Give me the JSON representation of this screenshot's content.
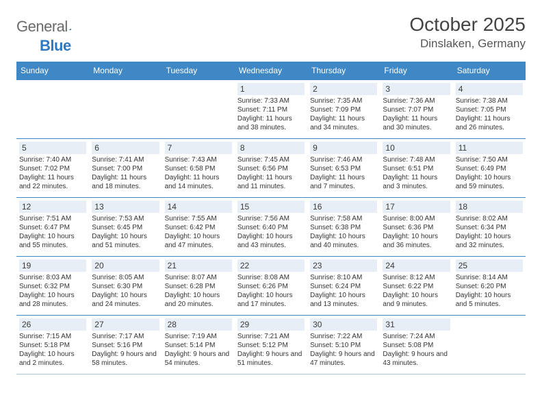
{
  "brand": {
    "part1": "General",
    "part2": "Blue"
  },
  "header": {
    "month_title": "October 2025",
    "location": "Dinslaken, Germany"
  },
  "colors": {
    "accent": "#3f88c5",
    "daynum_bg": "#e7eef5",
    "text": "#333333",
    "logo_gray": "#6a6a6a",
    "logo_blue": "#2f79c2"
  },
  "weekdays": [
    "Sunday",
    "Monday",
    "Tuesday",
    "Wednesday",
    "Thursday",
    "Friday",
    "Saturday"
  ],
  "weeks": [
    [
      {
        "day": "",
        "sunrise": "",
        "sunset": "",
        "daylight": ""
      },
      {
        "day": "",
        "sunrise": "",
        "sunset": "",
        "daylight": ""
      },
      {
        "day": "",
        "sunrise": "",
        "sunset": "",
        "daylight": ""
      },
      {
        "day": "1",
        "sunrise": "Sunrise: 7:33 AM",
        "sunset": "Sunset: 7:11 PM",
        "daylight": "Daylight: 11 hours and 38 minutes."
      },
      {
        "day": "2",
        "sunrise": "Sunrise: 7:35 AM",
        "sunset": "Sunset: 7:09 PM",
        "daylight": "Daylight: 11 hours and 34 minutes."
      },
      {
        "day": "3",
        "sunrise": "Sunrise: 7:36 AM",
        "sunset": "Sunset: 7:07 PM",
        "daylight": "Daylight: 11 hours and 30 minutes."
      },
      {
        "day": "4",
        "sunrise": "Sunrise: 7:38 AM",
        "sunset": "Sunset: 7:05 PM",
        "daylight": "Daylight: 11 hours and 26 minutes."
      }
    ],
    [
      {
        "day": "5",
        "sunrise": "Sunrise: 7:40 AM",
        "sunset": "Sunset: 7:02 PM",
        "daylight": "Daylight: 11 hours and 22 minutes."
      },
      {
        "day": "6",
        "sunrise": "Sunrise: 7:41 AM",
        "sunset": "Sunset: 7:00 PM",
        "daylight": "Daylight: 11 hours and 18 minutes."
      },
      {
        "day": "7",
        "sunrise": "Sunrise: 7:43 AM",
        "sunset": "Sunset: 6:58 PM",
        "daylight": "Daylight: 11 hours and 14 minutes."
      },
      {
        "day": "8",
        "sunrise": "Sunrise: 7:45 AM",
        "sunset": "Sunset: 6:56 PM",
        "daylight": "Daylight: 11 hours and 11 minutes."
      },
      {
        "day": "9",
        "sunrise": "Sunrise: 7:46 AM",
        "sunset": "Sunset: 6:53 PM",
        "daylight": "Daylight: 11 hours and 7 minutes."
      },
      {
        "day": "10",
        "sunrise": "Sunrise: 7:48 AM",
        "sunset": "Sunset: 6:51 PM",
        "daylight": "Daylight: 11 hours and 3 minutes."
      },
      {
        "day": "11",
        "sunrise": "Sunrise: 7:50 AM",
        "sunset": "Sunset: 6:49 PM",
        "daylight": "Daylight: 10 hours and 59 minutes."
      }
    ],
    [
      {
        "day": "12",
        "sunrise": "Sunrise: 7:51 AM",
        "sunset": "Sunset: 6:47 PM",
        "daylight": "Daylight: 10 hours and 55 minutes."
      },
      {
        "day": "13",
        "sunrise": "Sunrise: 7:53 AM",
        "sunset": "Sunset: 6:45 PM",
        "daylight": "Daylight: 10 hours and 51 minutes."
      },
      {
        "day": "14",
        "sunrise": "Sunrise: 7:55 AM",
        "sunset": "Sunset: 6:42 PM",
        "daylight": "Daylight: 10 hours and 47 minutes."
      },
      {
        "day": "15",
        "sunrise": "Sunrise: 7:56 AM",
        "sunset": "Sunset: 6:40 PM",
        "daylight": "Daylight: 10 hours and 43 minutes."
      },
      {
        "day": "16",
        "sunrise": "Sunrise: 7:58 AM",
        "sunset": "Sunset: 6:38 PM",
        "daylight": "Daylight: 10 hours and 40 minutes."
      },
      {
        "day": "17",
        "sunrise": "Sunrise: 8:00 AM",
        "sunset": "Sunset: 6:36 PM",
        "daylight": "Daylight: 10 hours and 36 minutes."
      },
      {
        "day": "18",
        "sunrise": "Sunrise: 8:02 AM",
        "sunset": "Sunset: 6:34 PM",
        "daylight": "Daylight: 10 hours and 32 minutes."
      }
    ],
    [
      {
        "day": "19",
        "sunrise": "Sunrise: 8:03 AM",
        "sunset": "Sunset: 6:32 PM",
        "daylight": "Daylight: 10 hours and 28 minutes."
      },
      {
        "day": "20",
        "sunrise": "Sunrise: 8:05 AM",
        "sunset": "Sunset: 6:30 PM",
        "daylight": "Daylight: 10 hours and 24 minutes."
      },
      {
        "day": "21",
        "sunrise": "Sunrise: 8:07 AM",
        "sunset": "Sunset: 6:28 PM",
        "daylight": "Daylight: 10 hours and 20 minutes."
      },
      {
        "day": "22",
        "sunrise": "Sunrise: 8:08 AM",
        "sunset": "Sunset: 6:26 PM",
        "daylight": "Daylight: 10 hours and 17 minutes."
      },
      {
        "day": "23",
        "sunrise": "Sunrise: 8:10 AM",
        "sunset": "Sunset: 6:24 PM",
        "daylight": "Daylight: 10 hours and 13 minutes."
      },
      {
        "day": "24",
        "sunrise": "Sunrise: 8:12 AM",
        "sunset": "Sunset: 6:22 PM",
        "daylight": "Daylight: 10 hours and 9 minutes."
      },
      {
        "day": "25",
        "sunrise": "Sunrise: 8:14 AM",
        "sunset": "Sunset: 6:20 PM",
        "daylight": "Daylight: 10 hours and 5 minutes."
      }
    ],
    [
      {
        "day": "26",
        "sunrise": "Sunrise: 7:15 AM",
        "sunset": "Sunset: 5:18 PM",
        "daylight": "Daylight: 10 hours and 2 minutes."
      },
      {
        "day": "27",
        "sunrise": "Sunrise: 7:17 AM",
        "sunset": "Sunset: 5:16 PM",
        "daylight": "Daylight: 9 hours and 58 minutes."
      },
      {
        "day": "28",
        "sunrise": "Sunrise: 7:19 AM",
        "sunset": "Sunset: 5:14 PM",
        "daylight": "Daylight: 9 hours and 54 minutes."
      },
      {
        "day": "29",
        "sunrise": "Sunrise: 7:21 AM",
        "sunset": "Sunset: 5:12 PM",
        "daylight": "Daylight: 9 hours and 51 minutes."
      },
      {
        "day": "30",
        "sunrise": "Sunrise: 7:22 AM",
        "sunset": "Sunset: 5:10 PM",
        "daylight": "Daylight: 9 hours and 47 minutes."
      },
      {
        "day": "31",
        "sunrise": "Sunrise: 7:24 AM",
        "sunset": "Sunset: 5:08 PM",
        "daylight": "Daylight: 9 hours and 43 minutes."
      },
      {
        "day": "",
        "sunrise": "",
        "sunset": "",
        "daylight": ""
      }
    ]
  ]
}
